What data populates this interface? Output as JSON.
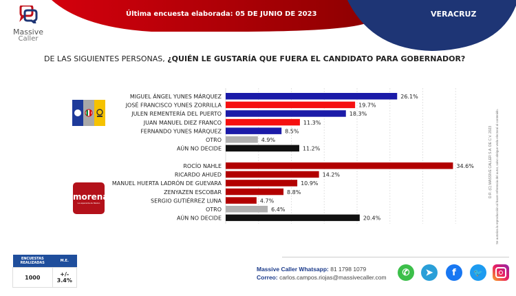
{
  "header": {
    "brand_line1": "Massive",
    "brand_line2": "Caller",
    "subtitle": "Última encuesta elaborada: 05 DE JUNIO DE 2023",
    "state": "VERACRUZ"
  },
  "question": {
    "prefix": "DE LAS SIGUIENTES PERSONAS, ",
    "bold": "¿QUIÉN LE GUSTARÍA QUE FUERA EL CANDIDATO PARA GOBERNADOR?"
  },
  "colors": {
    "header_red": "#c0000b",
    "header_blue": "#1e3575",
    "bar_blue": "#1b1ba8",
    "bar_red": "#f51010",
    "bar_darkred": "#b20000",
    "bar_gray": "#b0b0b0",
    "bar_black": "#111111"
  },
  "chart_data": [
    {
      "type": "bar",
      "orientation": "horizontal",
      "group": "PAN-PRI-PRD",
      "categories": [
        "MIGUEL ÁNGEL YUNES MÁRQUEZ",
        "JOSÉ FRANCISCO YUNES ZORRILLA",
        "JULEN REMENTERÍA DEL PUERTO",
        "JUAN MANUEL DIEZ FRANCO",
        "FERNANDO YUNES MÁRQUEZ",
        "OTRO",
        "AÚN NO DECIDE"
      ],
      "values": [
        26.1,
        19.7,
        18.3,
        11.3,
        8.5,
        4.9,
        11.2
      ],
      "labels": [
        "26.1%",
        "19.7%",
        "18.3%",
        "11.3%",
        "8.5%",
        "4.9%",
        "11.2%"
      ],
      "bar_colors": [
        "blue",
        "red",
        "blue",
        "red",
        "blue",
        "gray",
        "black"
      ],
      "unit": "%",
      "xlim": [
        0,
        36
      ],
      "grid": true
    },
    {
      "type": "bar",
      "orientation": "horizontal",
      "group": "MORENA",
      "categories": [
        "ROCÍO NAHLE",
        "RICARDO AHUED",
        "MANUEL HUERTA LADRÓN DE GUEVARA",
        "ZENYAZEN ESCOBAR",
        "SERGIO GUTIÉRREZ LUNA",
        "OTRO",
        "AÚN NO DECIDE"
      ],
      "values": [
        34.6,
        14.2,
        10.9,
        8.8,
        4.7,
        6.4,
        20.4
      ],
      "labels": [
        "34.6%",
        "14.2%",
        "10.9%",
        "8.8%",
        "4.7%",
        "6.4%",
        "20.4%"
      ],
      "bar_colors": [
        "darkred",
        "darkred",
        "darkred",
        "darkred",
        "darkred",
        "gray",
        "black"
      ],
      "unit": "%",
      "xlim": [
        0,
        36
      ],
      "grid": true
    }
  ],
  "party_logos": {
    "coalition": "PAN PRI PRD",
    "morena": "morena",
    "morena_tagline": "La esperanza de México"
  },
  "side_note": {
    "line1": "D.R. (C) MASSIVE CALLER S.A. DE C.V. 2023",
    "line2": "Se autoriza la reproducción al hacer referencia del autor, salvo abrigue veda electoral al contenido."
  },
  "stats": {
    "col1_header": "ENCUESTAS REALIZADAS",
    "col2_header": "M.E.",
    "col1_value": "1000",
    "col2_value": "+/- 3.4%"
  },
  "contact": {
    "whatsapp_label": "Massive Caller Whatsapp:",
    "whatsapp_value": " 81 1798 1079",
    "email_label": "Correo:",
    "email_value": " carlos.campos.riojas@massivecaller.com"
  },
  "social_icons": [
    "whatsapp-icon",
    "telegram-icon",
    "facebook-icon",
    "twitter-icon",
    "instagram-icon"
  ]
}
